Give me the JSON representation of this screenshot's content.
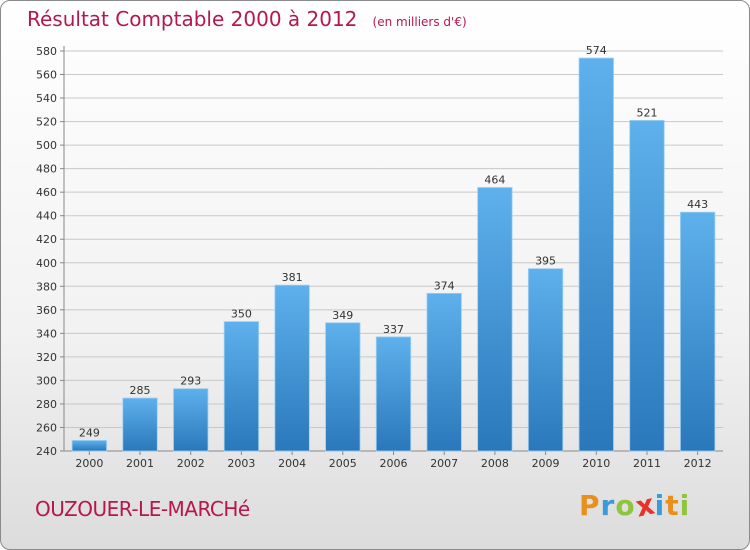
{
  "header": {
    "title": "Résultat Comptable 2000 à 2012",
    "subtitle": "(en milliers d'€)"
  },
  "footer": {
    "town": "OUZOUER-LE-MARCHé",
    "logo_letters": [
      "P",
      "r",
      "o",
      "x",
      "i",
      "t",
      "i"
    ],
    "logo_colors": [
      "#e8901a",
      "#3b9ad8",
      "#8fc43e",
      "#e8312a",
      "#3b9ad8",
      "#e8901a",
      "#8fc43e"
    ]
  },
  "colors": {
    "bar_light": "#5eb1ec",
    "bar_dark": "#2a78bb",
    "grid": "#c8c8c8",
    "text": "#333333",
    "accent": "#b5174f"
  },
  "chart_data": {
    "type": "bar",
    "title": "Résultat Comptable 2000 à 2012",
    "subtitle": "(en milliers d'€)",
    "xlabel": "",
    "ylabel": "",
    "categories": [
      "2000",
      "2001",
      "2002",
      "2003",
      "2004",
      "2005",
      "2006",
      "2007",
      "2008",
      "2009",
      "2010",
      "2011",
      "2012"
    ],
    "values": [
      249,
      285,
      293,
      350,
      381,
      349,
      337,
      374,
      464,
      395,
      574,
      521,
      443
    ],
    "ylim": [
      240,
      580
    ],
    "yticks": [
      240,
      260,
      280,
      300,
      320,
      340,
      360,
      380,
      400,
      420,
      440,
      460,
      480,
      500,
      520,
      540,
      560,
      580
    ],
    "grid": true,
    "legend": "none"
  }
}
